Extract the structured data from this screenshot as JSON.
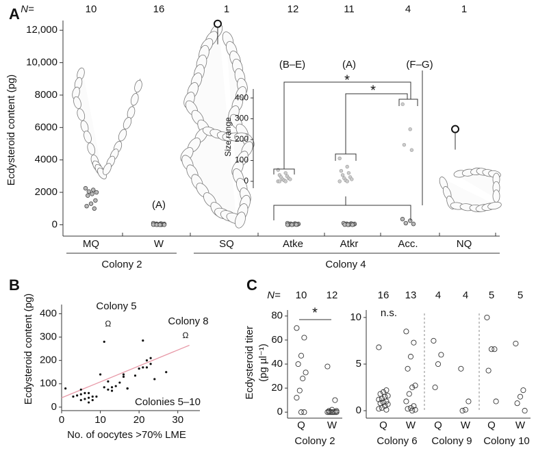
{
  "chart_data": [
    {
      "type": "strip",
      "panel": "A",
      "n_label": "N=",
      "categories": [
        "MQ",
        "W",
        "SQ",
        "Atke",
        "Atkr",
        "Acc.",
        "NQ"
      ],
      "n": [
        10,
        16,
        1,
        12,
        11,
        4,
        1
      ],
      "values": [
        [
          2250,
          2150,
          2050,
          2000,
          1900,
          1800,
          1500,
          1300,
          1150,
          1000
        ],
        [
          100,
          80,
          60,
          50,
          40,
          30,
          30,
          20,
          20,
          10,
          10,
          10,
          0,
          0,
          0,
          0
        ],
        [
          12400
        ],
        [
          100,
          80,
          60,
          50,
          40,
          30,
          20,
          20,
          10,
          10,
          0,
          0
        ],
        [
          100,
          80,
          60,
          50,
          40,
          30,
          20,
          10,
          10,
          0,
          0
        ],
        [
          350,
          250,
          100,
          50
        ],
        [
          5900
        ]
      ],
      "groups": [
        "Colony 2",
        "Colony 4"
      ],
      "notes": {
        "W": "(A)"
      },
      "ylabel": "Ecdysteroid content (pg)",
      "ylim": [
        -700,
        12600
      ],
      "yticks": [
        0,
        2000,
        4000,
        6000,
        8000,
        {
          "value": 10000,
          "label": "10,000"
        },
        {
          "value": 12000,
          "label": "12,000"
        }
      ]
    },
    {
      "type": "strip",
      "panel": null,
      "categories": [
        null,
        null,
        null
      ],
      "values": [
        [
          55,
          40,
          30,
          25,
          20,
          15,
          10,
          10,
          5,
          0,
          0,
          0
        ],
        [
          110,
          70,
          50,
          40,
          30,
          20,
          15,
          10,
          5,
          0,
          0
        ],
        [
          370,
          250,
          175,
          150
        ]
      ],
      "notes": [
        "(B–E)",
        "(A)",
        "(F–G)"
      ],
      "significance": [
        "*",
        "*"
      ],
      "ylabel": "Size range",
      "ylim": [
        -33,
        443
      ],
      "yticks": [
        0,
        100,
        200,
        300,
        400
      ]
    },
    {
      "type": "scatter",
      "panel": "B",
      "x": [
        1,
        3,
        4,
        5,
        5,
        5,
        6,
        6,
        7,
        7,
        7,
        8,
        8,
        9,
        10,
        11,
        11,
        12,
        12,
        13,
        13,
        14,
        15,
        16,
        16,
        17,
        17,
        19,
        20,
        21,
        21,
        22,
        22,
        23,
        23,
        24,
        27
      ],
      "y": [
        80,
        45,
        50,
        30,
        55,
        75,
        35,
        60,
        20,
        40,
        60,
        30,
        45,
        45,
        140,
        85,
        280,
        75,
        110,
        70,
        85,
        90,
        105,
        130,
        140,
        80,
        80,
        135,
        165,
        170,
        285,
        170,
        200,
        210,
        185,
        120,
        150
      ],
      "fit": {
        "x": [
          0,
          33
        ],
        "y": [
          40,
          265
        ],
        "color": "#e89aa8"
      },
      "markers": {
        "text": "Ω",
        "x": [
          12,
          32
        ],
        "y": [
          355,
          305
        ]
      },
      "annotations": [
        "Colony 5",
        "Colony 8",
        "Colonies 5–10"
      ],
      "xlabel": "No. of oocytes >70% LME",
      "ylabel": "Ecdysteroid content (pg)",
      "xlim": [
        0,
        35
      ],
      "ylim": [
        -15,
        410
      ],
      "xticks": [
        0,
        10,
        20,
        30
      ],
      "yticks": [
        0,
        100,
        200,
        300,
        400
      ]
    },
    {
      "type": "strip",
      "panel": "C",
      "n_label": "N=",
      "categories": [
        "Q",
        "W"
      ],
      "n": [
        10,
        12
      ],
      "values": [
        [
          70,
          62,
          47,
          40,
          33,
          28,
          18,
          12,
          0,
          0
        ],
        [
          38,
          10,
          2,
          1,
          1,
          0,
          0,
          0,
          0,
          0,
          0,
          0
        ]
      ],
      "colonies": [
        "Colony 2"
      ],
      "note": "*",
      "ylabel": [
        "Ecdysteroid titer",
        "(pg µl⁻¹)"
      ],
      "ylim": [
        -5,
        85
      ],
      "yticks": [
        0,
        20,
        40,
        60,
        80
      ]
    },
    {
      "type": "strip",
      "panel": null,
      "categories": [
        "Q",
        "W",
        "Q",
        "W",
        "Q",
        "W"
      ],
      "n": [
        16,
        13,
        4,
        4,
        5,
        5
      ],
      "values": [
        [
          6.8,
          2.2,
          2.0,
          1.8,
          1.6,
          1.5,
          1.3,
          1.2,
          1.0,
          0.9,
          0.8,
          0.7,
          0.5,
          0.3,
          0.2,
          0.1
        ],
        [
          8.5,
          7.3,
          5.8,
          4.5,
          2.7,
          2.5,
          1.8,
          1.0,
          0.5,
          0.3,
          0.2,
          0.1,
          0
        ],
        [
          7.5,
          6.0,
          5.0,
          2.5
        ],
        [
          4.5,
          1.0,
          0.1,
          0
        ],
        [
          10,
          6.6,
          6.6,
          4.3,
          1.0
        ],
        [
          7.2,
          2.2,
          1.5,
          0.8,
          0
        ]
      ],
      "colonies": [
        "Colony 6",
        "Colony 9",
        "Colony 10"
      ],
      "note": "n.s.",
      "ylim": [
        -0.8,
        10.8
      ],
      "yticks": [
        0,
        5,
        10
      ]
    }
  ]
}
